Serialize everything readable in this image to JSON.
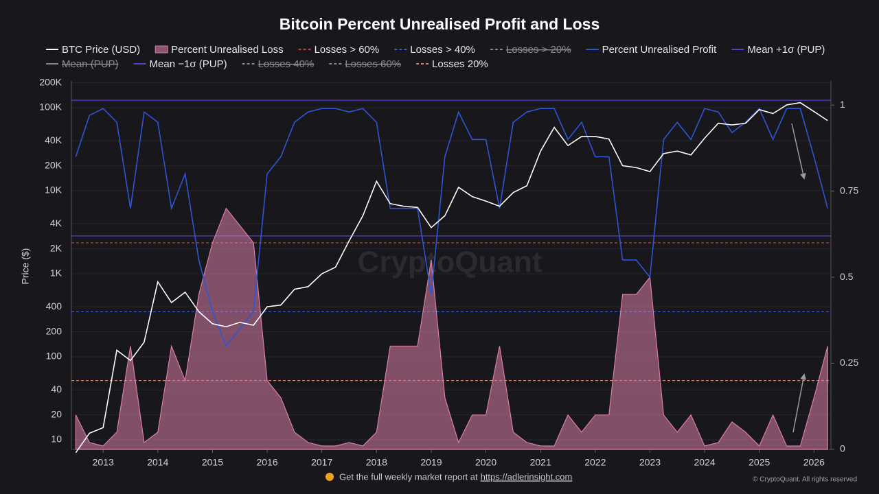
{
  "chart_data": {
    "type": "line",
    "title": "Bitcoin Percent Unrealised Profit and Loss",
    "ylabel": "Price ($)",
    "watermark": "CryptoQuant",
    "log_y": true,
    "grid": true,
    "xlim": [
      2012.42,
      2026.31
    ],
    "xticks": [
      2013,
      2014,
      2015,
      2016,
      2017,
      2018,
      2019,
      2020,
      2021,
      2022,
      2023,
      2024,
      2025,
      2026
    ],
    "ylim": [
      7.66,
      210000
    ],
    "yticks": [
      10,
      20,
      40,
      100,
      200,
      400,
      {
        "value": 1000,
        "label": "1K"
      },
      {
        "value": 2000,
        "label": "2K"
      },
      {
        "value": 4000,
        "label": "4K"
      },
      {
        "value": 10000,
        "label": "10K"
      },
      {
        "value": 20000,
        "label": "20K"
      },
      {
        "value": 40000,
        "label": "40K"
      },
      {
        "value": 100000,
        "label": "100K"
      },
      {
        "value": 200000,
        "label": "200K"
      }
    ],
    "y2lim": [
      0,
      1.07
    ],
    "y2ticks": [
      0,
      0.25,
      0.5,
      0.75,
      1
    ],
    "x": [
      2012.5,
      2012.75,
      2013.0,
      2013.25,
      2013.5,
      2013.75,
      2014.0,
      2014.25,
      2014.5,
      2014.75,
      2015.0,
      2015.25,
      2015.5,
      2015.75,
      2016.0,
      2016.25,
      2016.5,
      2016.75,
      2017.0,
      2017.25,
      2017.5,
      2017.75,
      2018.0,
      2018.25,
      2018.5,
      2018.75,
      2019.0,
      2019.25,
      2019.5,
      2019.75,
      2020.0,
      2020.25,
      2020.5,
      2020.75,
      2021.0,
      2021.25,
      2021.5,
      2021.75,
      2022.0,
      2022.25,
      2022.5,
      2022.75,
      2023.0,
      2023.25,
      2023.5,
      2023.75,
      2024.0,
      2024.25,
      2024.5,
      2024.75,
      2025.0,
      2025.25,
      2025.5,
      2025.75,
      2026.0,
      2026.25
    ],
    "series": [
      {
        "name": "BTC Price (USD)",
        "kind": "line",
        "color": "#ffffff",
        "axis": "y",
        "values": [
          7,
          12,
          14,
          120,
          90,
          150,
          800,
          450,
          600,
          350,
          250,
          230,
          260,
          240,
          400,
          420,
          650,
          700,
          1000,
          1200,
          2500,
          5000,
          13000,
          7000,
          6500,
          6300,
          3600,
          5000,
          11000,
          8500,
          7500,
          6500,
          9500,
          11500,
          30000,
          58000,
          35000,
          45000,
          45000,
          42000,
          20000,
          19000,
          17000,
          28000,
          30000,
          27000,
          43000,
          65000,
          62000,
          65000,
          95000,
          85000,
          108000,
          115000,
          90000,
          70000
        ]
      },
      {
        "name": "Percent Unrealised Loss",
        "kind": "area",
        "color": "#d97fa8",
        "axis": "y2",
        "values": [
          0.1,
          0.02,
          0.01,
          0.05,
          0.3,
          0.02,
          0.05,
          0.3,
          0.2,
          0.45,
          0.6,
          0.7,
          0.65,
          0.6,
          0.2,
          0.15,
          0.05,
          0.02,
          0.01,
          0.01,
          0.02,
          0.01,
          0.05,
          0.3,
          0.3,
          0.3,
          0.55,
          0.15,
          0.02,
          0.1,
          0.1,
          0.3,
          0.05,
          0.02,
          0.01,
          0.01,
          0.1,
          0.05,
          0.1,
          0.1,
          0.45,
          0.45,
          0.5,
          0.1,
          0.05,
          0.1,
          0.01,
          0.02,
          0.08,
          0.05,
          0.01,
          0.1,
          0.01,
          0.01,
          0.15,
          0.3
        ]
      },
      {
        "name": "Losses > 60%",
        "kind": "hline",
        "dash": true,
        "color": "#c8403a",
        "axis": "y2",
        "value": 0.6
      },
      {
        "name": "Losses > 40%",
        "kind": "hline",
        "dash": true,
        "color": "#3b5bdb",
        "axis": "y2",
        "value": 0.4
      },
      {
        "name": "Losses > 20%",
        "kind": "hline",
        "dash": true,
        "hidden": true,
        "color": "#8a8a90"
      },
      {
        "name": "Percent Unrealised Profit",
        "kind": "line",
        "color": "#2f55d4",
        "axis": "y2",
        "values": [
          0.85,
          0.97,
          0.99,
          0.95,
          0.7,
          0.98,
          0.95,
          0.7,
          0.8,
          0.55,
          0.4,
          0.3,
          0.35,
          0.4,
          0.8,
          0.85,
          0.95,
          0.98,
          0.99,
          0.99,
          0.98,
          0.99,
          0.95,
          0.7,
          0.7,
          0.7,
          0.45,
          0.85,
          0.98,
          0.9,
          0.9,
          0.7,
          0.95,
          0.98,
          0.99,
          0.99,
          0.9,
          0.95,
          0.85,
          0.85,
          0.55,
          0.55,
          0.5,
          0.9,
          0.95,
          0.9,
          0.99,
          0.98,
          0.92,
          0.95,
          0.99,
          0.9,
          0.99,
          0.99,
          0.85,
          0.7
        ]
      },
      {
        "name": "Mean +1σ (PUP)",
        "kind": "hline",
        "color": "#5b3fd0",
        "axis": "y2",
        "value": 1.014
      },
      {
        "name": "Mean (PUP)",
        "kind": "hline",
        "hidden": true,
        "color": "#8a8a90"
      },
      {
        "name": "Mean −1σ (PUP)",
        "kind": "hline",
        "color": "#5b3fd0",
        "axis": "y2",
        "value": 0.62
      },
      {
        "name": "Losses 40%",
        "kind": "hline",
        "dash": true,
        "hidden": true,
        "color": "#8a8a90"
      },
      {
        "name": "Losses 60%",
        "kind": "hline",
        "dash": true,
        "hidden": true,
        "color": "#8a8a90"
      },
      {
        "name": "Losses 20%",
        "kind": "hline",
        "dash": true,
        "color": "#d9826b",
        "axis": "y2",
        "value": 0.2
      }
    ]
  },
  "footer": {
    "text": "Get the full weekly market report at",
    "link": "https://adlerinsight.com",
    "copyright": "© CryptoQuant. All rights reserved"
  }
}
